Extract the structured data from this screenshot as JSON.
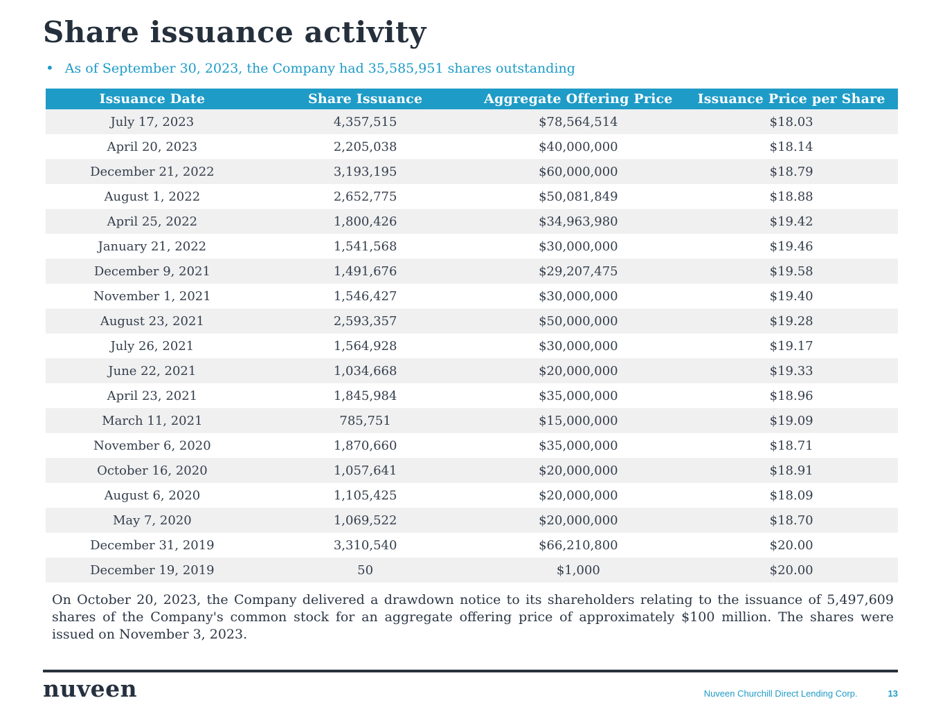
{
  "slide": {
    "title": "Share issuance activity",
    "bullet": "As of September 30, 2023, the Company had 35,585,951 shares outstanding",
    "footnote": "On October 20, 2023, the Company delivered a drawdown notice to its shareholders relating to the issuance of 5,497,609 shares of the Company's common stock for an aggregate offering price of approximately $100 million. The shares were issued on November 3, 2023."
  },
  "table": {
    "columns": [
      "Issuance Date",
      "Share Issuance",
      "Aggregate Offering Price",
      "Issuance Price per Share"
    ],
    "rows": [
      [
        "July 17, 2023",
        "4,357,515",
        "$78,564,514",
        "$18.03"
      ],
      [
        "April 20, 2023",
        "2,205,038",
        "$40,000,000",
        "$18.14"
      ],
      [
        "December 21, 2022",
        "3,193,195",
        "$60,000,000",
        "$18.79"
      ],
      [
        "August 1, 2022",
        "2,652,775",
        "$50,081,849",
        "$18.88"
      ],
      [
        "April 25, 2022",
        "1,800,426",
        "$34,963,980",
        "$19.42"
      ],
      [
        "January 21, 2022",
        "1,541,568",
        "$30,000,000",
        "$19.46"
      ],
      [
        "December 9, 2021",
        "1,491,676",
        "$29,207,475",
        "$19.58"
      ],
      [
        "November 1, 2021",
        "1,546,427",
        "$30,000,000",
        "$19.40"
      ],
      [
        "August 23, 2021",
        "2,593,357",
        "$50,000,000",
        "$19.28"
      ],
      [
        "July 26, 2021",
        "1,564,928",
        "$30,000,000",
        "$19.17"
      ],
      [
        "June 22, 2021",
        "1,034,668",
        "$20,000,000",
        "$19.33"
      ],
      [
        "April 23, 2021",
        "1,845,984",
        "$35,000,000",
        "$18.96"
      ],
      [
        "March 11, 2021",
        "785,751",
        "$15,000,000",
        "$19.09"
      ],
      [
        "November 6, 2020",
        "1,870,660",
        "$35,000,000",
        "$18.71"
      ],
      [
        "October 16, 2020",
        "1,057,641",
        "$20,000,000",
        "$18.91"
      ],
      [
        "August 6, 2020",
        "1,105,425",
        "$20,000,000",
        "$18.09"
      ],
      [
        "May 7, 2020",
        "1,069,522",
        "$20,000,000",
        "$18.70"
      ],
      [
        "December 31, 2019",
        "3,310,540",
        "$66,210,800",
        "$20.00"
      ],
      [
        "December 19, 2019",
        "50",
        "$1,000",
        "$20.00"
      ]
    ]
  },
  "footer": {
    "logo": "nuveen",
    "company": "Nuveen Churchill Direct Lending Corp.",
    "page_number": "13"
  },
  "colors": {
    "accent_blue": "#1e9bc6",
    "title_navy": "#25303c",
    "row_alt_gray": "#f0f0f1",
    "footer_rule": "#28313c"
  }
}
